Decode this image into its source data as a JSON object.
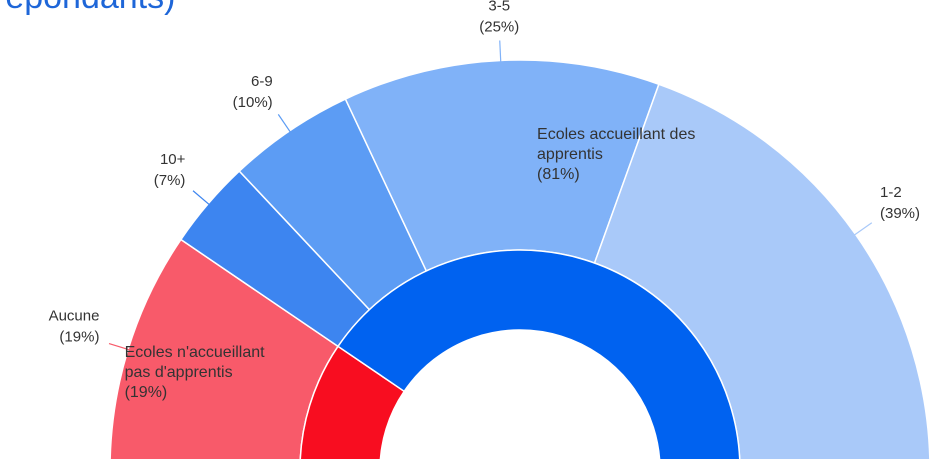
{
  "chart_data": {
    "type": "donut",
    "title": "répondants)",
    "outer": {
      "categories": [
        "Aucune",
        "10+",
        "6-9",
        "3-5",
        "1-2"
      ],
      "values": [
        19,
        7,
        10,
        25,
        39
      ],
      "value_labels": [
        "(19%)",
        "(7%)",
        "(10%)",
        "(25%)",
        "(39%)"
      ],
      "colors": [
        "#f85a6a",
        "#3d85f0",
        "#5c9cf4",
        "#80b2f8",
        "#a9c9f9"
      ]
    },
    "inner": {
      "categories": [
        "Ecoles n'accueillant pas d'apprentis",
        "Ecoles accueillant des apprentis"
      ],
      "values": [
        19,
        81
      ],
      "value_labels": [
        "(19%)",
        "(81%)"
      ],
      "colors": [
        "#f80d20",
        "#0062f0"
      ]
    }
  }
}
